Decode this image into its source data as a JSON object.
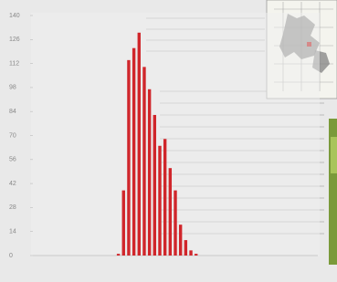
{
  "chart_data": {
    "type": "bar",
    "categories": [
      null,
      null,
      null,
      null,
      null,
      null,
      null,
      null,
      null,
      null,
      null,
      null,
      null,
      null,
      null,
      null,
      null,
      null,
      null,
      null,
      null,
      null,
      null,
      null,
      null,
      null,
      null,
      null,
      null,
      null,
      null,
      null,
      null,
      null,
      null,
      null,
      null,
      null,
      null,
      null,
      null,
      null,
      null,
      null,
      null,
      null,
      null,
      null,
      null,
      null,
      null,
      null,
      null,
      null,
      null
    ],
    "values": [
      0,
      0,
      0,
      0,
      0,
      0,
      0,
      0,
      0,
      0,
      0,
      0,
      0,
      0,
      0,
      0,
      1,
      38,
      114,
      121,
      130,
      110,
      97,
      82,
      64,
      68,
      51,
      38,
      18,
      9,
      3,
      1,
      0,
      0,
      0,
      0,
      0,
      0,
      0,
      0,
      0,
      0,
      0,
      0,
      0,
      0,
      0,
      0,
      0,
      0,
      0,
      0,
      0,
      0,
      0
    ],
    "color": "#d0262b",
    "ylim": [
      0,
      140
    ],
    "yticks": [
      0,
      14,
      28,
      42,
      56,
      70,
      84,
      98,
      112,
      126,
      140
    ],
    "grid": false
  }
}
